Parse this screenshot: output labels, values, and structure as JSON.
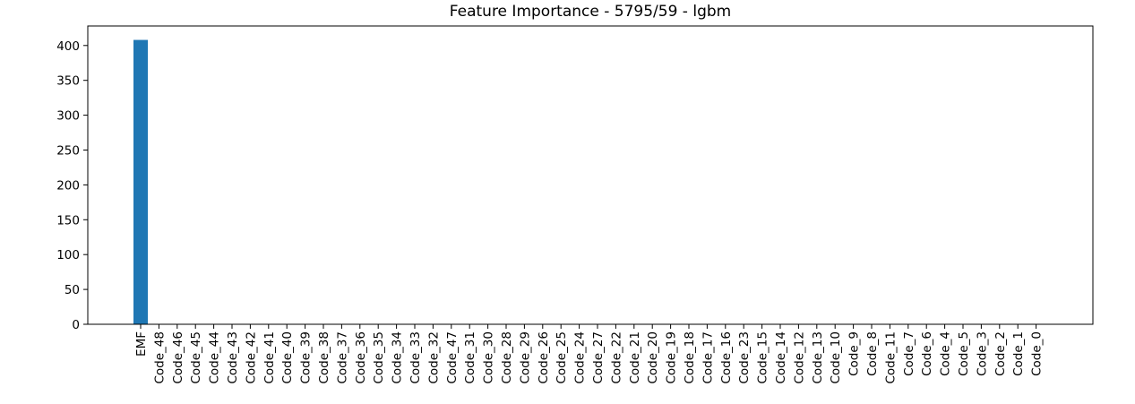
{
  "chart_data": {
    "type": "bar",
    "title": "Feature Importance - 5795/59 - lgbm",
    "xlabel": "",
    "ylabel": "",
    "categories": [
      "EMF",
      "Code_48",
      "Code_46",
      "Code_45",
      "Code_44",
      "Code_43",
      "Code_42",
      "Code_41",
      "Code_40",
      "Code_39",
      "Code_38",
      "Code_37",
      "Code_36",
      "Code_35",
      "Code_34",
      "Code_33",
      "Code_32",
      "Code_47",
      "Code_31",
      "Code_30",
      "Code_28",
      "Code_29",
      "Code_26",
      "Code_25",
      "Code_24",
      "Code_27",
      "Code_22",
      "Code_21",
      "Code_20",
      "Code_19",
      "Code_18",
      "Code_17",
      "Code_16",
      "Code_23",
      "Code_15",
      "Code_14",
      "Code_12",
      "Code_13",
      "Code_10",
      "Code_9",
      "Code_8",
      "Code_11",
      "Code_7",
      "Code_6",
      "Code_4",
      "Code_5",
      "Code_3",
      "Code_2",
      "Code_1",
      "Code_0"
    ],
    "values": [
      408,
      0,
      0,
      0,
      0,
      0,
      0,
      0,
      0,
      0,
      0,
      0,
      0,
      0,
      0,
      0,
      0,
      0,
      0,
      0,
      0,
      0,
      0,
      0,
      0,
      0,
      0,
      0,
      0,
      0,
      0,
      0,
      0,
      0,
      0,
      0,
      0,
      0,
      0,
      0,
      0,
      0,
      0,
      0,
      0,
      0,
      0,
      0,
      0,
      0
    ],
    "ylim": [
      0,
      428
    ],
    "yticks": [
      0,
      50,
      100,
      150,
      200,
      250,
      300,
      350,
      400
    ],
    "bar_color": "#1f77b4",
    "grid": false,
    "legend": "none"
  }
}
